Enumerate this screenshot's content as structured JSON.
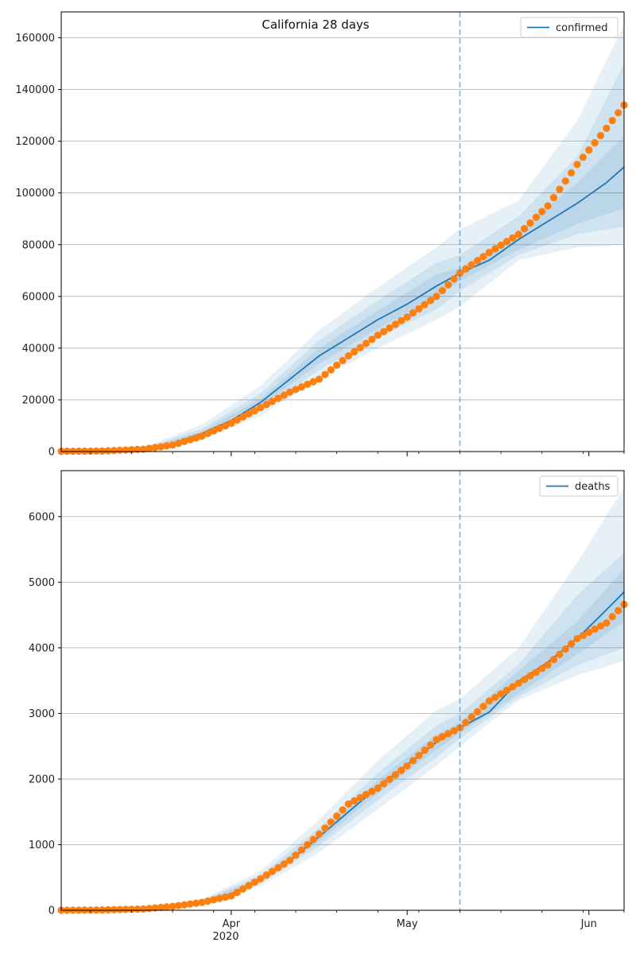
{
  "chart_data": [
    {
      "type": "line",
      "title": "California 28 days",
      "x_axis": {
        "min": "2020-03-03",
        "max": "2020-06-07",
        "tick_labels": [
          "Apr",
          "May",
          "Jun"
        ],
        "year_label": "2020"
      },
      "ylim": [
        0,
        170000
      ],
      "yticks": [
        0,
        20000,
        40000,
        60000,
        80000,
        100000,
        120000,
        140000,
        160000
      ],
      "grid": "horizontal",
      "legend": {
        "position": "top-right",
        "entries": [
          "confirmed"
        ]
      },
      "forecast_start": "2020-05-10",
      "colors": {
        "line": "#1f77b4",
        "points": "#ff7f0e",
        "band": "#1f77b4",
        "vline": "#1f77b4"
      },
      "series": [
        {
          "name": "confirmed",
          "kind": "line",
          "x": [
            "2020-03-03",
            "2020-03-10",
            "2020-03-17",
            "2020-03-22",
            "2020-03-27",
            "2020-04-01",
            "2020-04-06",
            "2020-04-11",
            "2020-04-16",
            "2020-04-21",
            "2020-04-26",
            "2020-05-01",
            "2020-05-06",
            "2020-05-10",
            "2020-05-15",
            "2020-05-20",
            "2020-05-25",
            "2020-05-30",
            "2020-06-04",
            "2020-06-07"
          ],
          "y": [
            0,
            200,
            1000,
            3000,
            7000,
            12000,
            19000,
            28000,
            37000,
            44000,
            51000,
            57000,
            64000,
            69000,
            74000,
            82000,
            89000,
            96000,
            104000,
            110000
          ]
        },
        {
          "name": "band-inner",
          "kind": "band",
          "x": [
            "2020-03-03",
            "2020-03-17",
            "2020-03-27",
            "2020-04-06",
            "2020-04-16",
            "2020-04-26",
            "2020-05-06",
            "2020-05-10",
            "2020-05-20",
            "2020-05-30",
            "2020-06-07"
          ],
          "low": [
            0,
            900,
            6200,
            17500,
            34000,
            47500,
            59500,
            66000,
            78000,
            88000,
            94000
          ],
          "high": [
            0,
            1100,
            7800,
            20500,
            40000,
            54500,
            68500,
            71000,
            85000,
            104000,
            122000
          ]
        },
        {
          "name": "band-mid",
          "kind": "band",
          "x": [
            "2020-03-03",
            "2020-03-17",
            "2020-03-27",
            "2020-04-06",
            "2020-04-16",
            "2020-04-26",
            "2020-05-06",
            "2020-05-10",
            "2020-05-20",
            "2020-05-30",
            "2020-06-07"
          ],
          "low": [
            0,
            800,
            5500,
            16000,
            31500,
            44000,
            55000,
            62000,
            76000,
            84000,
            87000
          ],
          "high": [
            0,
            1300,
            8800,
            22500,
            43000,
            58500,
            73000,
            76000,
            91000,
            114000,
            150000
          ]
        },
        {
          "name": "band-outer",
          "kind": "band",
          "x": [
            "2020-03-03",
            "2020-03-17",
            "2020-03-27",
            "2020-04-06",
            "2020-04-16",
            "2020-04-26",
            "2020-05-06",
            "2020-05-10",
            "2020-05-20",
            "2020-05-30",
            "2020-06-07"
          ],
          "low": [
            0,
            700,
            4500,
            14000,
            28000,
            40000,
            51000,
            56000,
            74000,
            79000,
            80000
          ],
          "high": [
            0,
            1500,
            10500,
            25500,
            47000,
            63500,
            79000,
            86000,
            97000,
            128000,
            165000
          ]
        },
        {
          "name": "observed",
          "kind": "points",
          "x": [
            "2020-03-03",
            "2020-03-10",
            "2020-03-17",
            "2020-03-22",
            "2020-03-27",
            "2020-04-01",
            "2020-04-06",
            "2020-04-11",
            "2020-04-16",
            "2020-04-21",
            "2020-04-26",
            "2020-05-01",
            "2020-05-06",
            "2020-05-10",
            "2020-05-15",
            "2020-05-20",
            "2020-05-25",
            "2020-05-30",
            "2020-06-04",
            "2020-06-07"
          ],
          "y": [
            100,
            200,
            900,
            2500,
            6000,
            11000,
            17000,
            23000,
            28000,
            37000,
            45000,
            52000,
            60000,
            69000,
            77000,
            84000,
            95000,
            111000,
            125000,
            134000
          ]
        }
      ]
    },
    {
      "type": "line",
      "x_axis": {
        "min": "2020-03-03",
        "max": "2020-06-07",
        "tick_labels": [
          "Apr",
          "May",
          "Jun"
        ],
        "year_label": "2020"
      },
      "ylim": [
        0,
        6700
      ],
      "yticks": [
        0,
        1000,
        2000,
        3000,
        4000,
        5000,
        6000
      ],
      "grid": "horizontal",
      "legend": {
        "position": "top-right",
        "entries": [
          "deaths"
        ]
      },
      "forecast_start": "2020-05-10",
      "colors": {
        "line": "#1f77b4",
        "points": "#ff7f0e",
        "band": "#1f77b4",
        "vline": "#1f77b4"
      },
      "series": [
        {
          "name": "deaths",
          "kind": "line",
          "x": [
            "2020-03-03",
            "2020-03-10",
            "2020-03-17",
            "2020-03-22",
            "2020-03-27",
            "2020-04-01",
            "2020-04-06",
            "2020-04-11",
            "2020-04-16",
            "2020-04-21",
            "2020-04-26",
            "2020-05-01",
            "2020-05-06",
            "2020-05-10",
            "2020-05-15",
            "2020-05-20",
            "2020-05-25",
            "2020-05-30",
            "2020-06-04",
            "2020-06-07"
          ],
          "y": [
            0,
            5,
            20,
            60,
            120,
            250,
            470,
            760,
            1120,
            1500,
            1880,
            2220,
            2560,
            2780,
            3020,
            3490,
            3780,
            4140,
            4580,
            4850
          ]
        },
        {
          "name": "band-inner",
          "kind": "band",
          "x": [
            "2020-03-03",
            "2020-03-17",
            "2020-03-27",
            "2020-04-06",
            "2020-04-16",
            "2020-04-26",
            "2020-05-06",
            "2020-05-10",
            "2020-05-20",
            "2020-05-30",
            "2020-06-07"
          ],
          "low": [
            0,
            15,
            110,
            440,
            1050,
            1780,
            2450,
            2700,
            3300,
            3900,
            4400
          ],
          "high": [
            0,
            25,
            135,
            500,
            1180,
            1980,
            2680,
            2860,
            3650,
            4400,
            5200
          ]
        },
        {
          "name": "band-mid",
          "kind": "band",
          "x": [
            "2020-03-03",
            "2020-03-17",
            "2020-03-27",
            "2020-04-06",
            "2020-04-16",
            "2020-04-26",
            "2020-05-06",
            "2020-05-10",
            "2020-05-20",
            "2020-05-30",
            "2020-06-07"
          ],
          "low": [
            0,
            12,
            100,
            410,
            980,
            1680,
            2330,
            2620,
            3250,
            3730,
            4000
          ],
          "high": [
            0,
            28,
            150,
            540,
            1260,
            2090,
            2820,
            3000,
            3750,
            4800,
            5450
          ]
        },
        {
          "name": "band-outer",
          "kind": "band",
          "x": [
            "2020-03-03",
            "2020-03-17",
            "2020-03-27",
            "2020-04-06",
            "2020-04-16",
            "2020-04-26",
            "2020-05-06",
            "2020-05-10",
            "2020-05-20",
            "2020-05-30",
            "2020-06-07"
          ],
          "low": [
            0,
            10,
            90,
            370,
            880,
            1540,
            2200,
            2500,
            3200,
            3580,
            3800
          ],
          "high": [
            0,
            32,
            170,
            600,
            1380,
            2280,
            3050,
            3220,
            4000,
            5300,
            6450
          ]
        },
        {
          "name": "observed",
          "kind": "points",
          "x": [
            "2020-03-03",
            "2020-03-10",
            "2020-03-17",
            "2020-03-22",
            "2020-03-27",
            "2020-04-01",
            "2020-04-06",
            "2020-04-11",
            "2020-04-16",
            "2020-04-21",
            "2020-04-26",
            "2020-05-01",
            "2020-05-06",
            "2020-05-10",
            "2020-05-15",
            "2020-05-20",
            "2020-05-25",
            "2020-05-30",
            "2020-06-04",
            "2020-06-07"
          ],
          "y": [
            0,
            5,
            20,
            60,
            120,
            220,
            480,
            760,
            1160,
            1620,
            1860,
            2200,
            2600,
            2780,
            3190,
            3460,
            3740,
            4140,
            4380,
            4660
          ]
        }
      ]
    }
  ]
}
